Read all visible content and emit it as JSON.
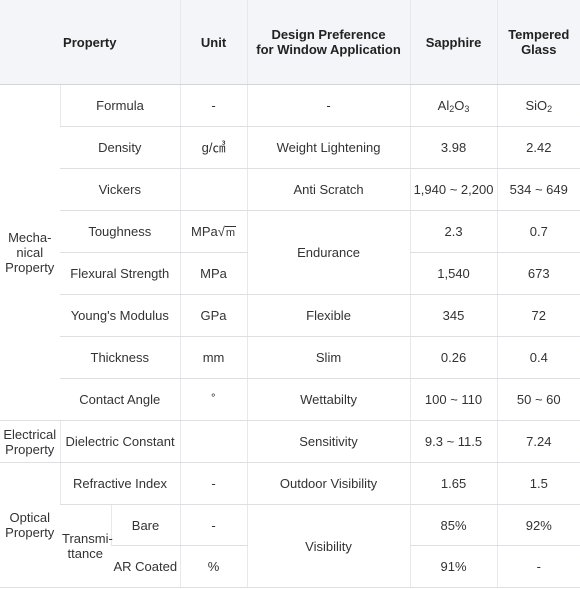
{
  "headers": {
    "property": "Property",
    "unit": "Unit",
    "design": "Design Preference\nfor Window Application",
    "sapphire": "Sapphire",
    "glass": "Tempered\nGlass"
  },
  "categories": {
    "mechanical": "Mecha-\nnical\nProperty",
    "electrical": "Electrical\nProperty",
    "optical": "Optical\nProperty",
    "transmittance": "Transmi-\nttance"
  },
  "rows": {
    "formula": {
      "property": "Formula",
      "unit": "-",
      "design": "-",
      "sapphire_base": "Al",
      "sapphire_sub1": "2",
      "sapphire_mid": "O",
      "sapphire_sub2": "3",
      "glass_base": "SiO",
      "glass_sub": "2"
    },
    "density": {
      "property": "Density",
      "unit": "g/㎤",
      "design": "Weight Lightening",
      "sapphire": "3.98",
      "glass": "2.42"
    },
    "vickers": {
      "property": "Vickers",
      "unit": "",
      "design": "Anti Scratch",
      "sapphire": "1,940 ~ 2,200",
      "glass": "534 ~ 649"
    },
    "toughness": {
      "property": "Toughness",
      "unit_prefix": "MPa",
      "unit_radical": "m",
      "sapphire": "2.3",
      "glass": "0.7"
    },
    "endurance": {
      "design": "Endurance"
    },
    "flexural": {
      "property": "Flexural Strength",
      "unit": "MPa",
      "sapphire": "1,540",
      "glass": "673"
    },
    "youngs": {
      "property": "Young's Modulus",
      "unit": "GPa",
      "design": "Flexible",
      "sapphire": "345",
      "glass": "72"
    },
    "thickness": {
      "property": "Thickness",
      "unit": "mm",
      "design": "Slim",
      "sapphire": "0.26",
      "glass": "0.4"
    },
    "contact": {
      "property": "Contact Angle",
      "unit": "˚",
      "design": "Wettabilty",
      "sapphire": "100 ~ 110",
      "glass": "50 ~ 60"
    },
    "dielectric": {
      "property": "Dielectric Constant",
      "unit": "",
      "design": "Sensitivity",
      "sapphire": "9.3 ~ 11.5",
      "glass": "7.24"
    },
    "refractive": {
      "property": "Refractive Index",
      "unit": "-",
      "design": "Outdoor Visibility",
      "sapphire": "1.65",
      "glass": "1.5"
    },
    "bare": {
      "property": "Bare",
      "unit": "-",
      "sapphire": "85%",
      "glass": "92%"
    },
    "visibility": {
      "design": "Visibility"
    },
    "ar": {
      "property": "AR Coated",
      "unit": "%",
      "sapphire": "91%",
      "glass": "-"
    }
  }
}
